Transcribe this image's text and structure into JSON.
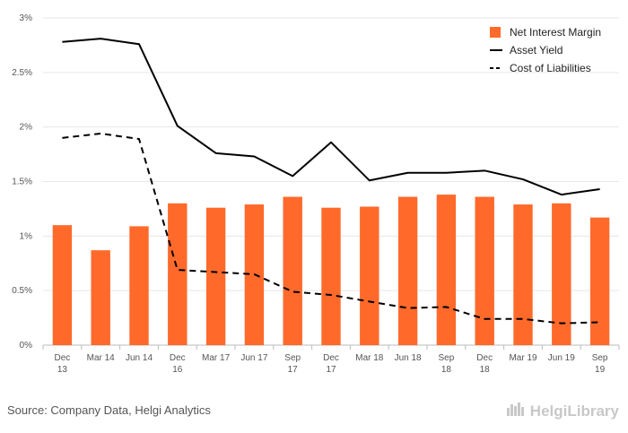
{
  "chart_data": {
    "type": "bar",
    "categories": [
      [
        "Dec",
        "13"
      ],
      [
        "Mar 14"
      ],
      [
        "Jun 14"
      ],
      [
        "Dec",
        "16"
      ],
      [
        "Mar 17"
      ],
      [
        "Jun 17"
      ],
      [
        "Sep",
        "17"
      ],
      [
        "Dec",
        "17"
      ],
      [
        "Mar 18"
      ],
      [
        "Jun 18"
      ],
      [
        "Sep",
        "18"
      ],
      [
        "Dec",
        "18"
      ],
      [
        "Mar 19"
      ],
      [
        "Jun 19"
      ],
      [
        "Sep",
        "19"
      ]
    ],
    "series": [
      {
        "name": "Net Interest Margin",
        "type": "bar",
        "color": "#ff6a2b",
        "values": [
          1.1,
          0.87,
          1.09,
          1.3,
          1.26,
          1.29,
          1.36,
          1.26,
          1.27,
          1.36,
          1.38,
          1.36,
          1.29,
          1.3,
          1.17
        ]
      },
      {
        "name": "Asset Yield",
        "type": "line",
        "color": "#000000",
        "dash": "solid",
        "values": [
          2.78,
          2.81,
          2.76,
          2.01,
          1.76,
          1.73,
          1.55,
          1.86,
          1.51,
          1.58,
          1.58,
          1.6,
          1.52,
          1.38,
          1.43
        ]
      },
      {
        "name": "Cost of Liabilities",
        "type": "line",
        "color": "#000000",
        "dash": "dashed",
        "values": [
          1.9,
          1.94,
          1.89,
          0.69,
          0.67,
          0.65,
          0.49,
          0.46,
          0.4,
          0.34,
          0.35,
          0.24,
          0.24,
          0.2,
          0.21
        ]
      }
    ],
    "yticks": [
      "0%",
      "0.5%",
      "1%",
      "1.5%",
      "2%",
      "2.5%",
      "3%"
    ],
    "ylim": [
      0,
      3
    ],
    "grid": true,
    "legend_position": "top-right"
  },
  "footer": {
    "source": "Source: Company Data, Helgi Analytics",
    "brand": "HelgiLibrary"
  }
}
